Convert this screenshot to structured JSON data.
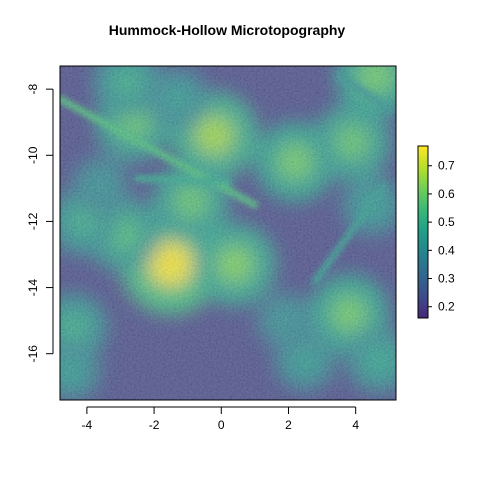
{
  "chart_data": {
    "type": "heatmap",
    "title": "Hummock-Hollow Microtopography",
    "xlabel": "",
    "ylabel": "",
    "xlim": [
      -4.8,
      5.2
    ],
    "ylim": [
      -17.4,
      -7.3
    ],
    "x_ticks": [
      -4,
      -2,
      0,
      2,
      4
    ],
    "x_tick_labels": [
      "-4",
      "-2",
      "0",
      "2",
      "4"
    ],
    "y_ticks": [
      -8,
      -10,
      -12,
      -14,
      -16
    ],
    "y_tick_labels": [
      "-8",
      "-10",
      "-12",
      "-14",
      "-16"
    ],
    "colorbar": {
      "range": [
        0.16,
        0.77
      ],
      "ticks": [
        0.2,
        0.3,
        0.4,
        0.5,
        0.6,
        0.7
      ],
      "tick_labels": [
        "0.2",
        "0.3",
        "0.4",
        "0.5",
        "0.6",
        "0.7"
      ],
      "palette": [
        "#482878",
        "#3e4a89",
        "#31688e",
        "#26828e",
        "#1f9e89",
        "#35b779",
        "#6ece58",
        "#b5de2b",
        "#fde725"
      ],
      "placement": "right"
    },
    "hummocks": [
      {
        "x": -1.5,
        "y": -13.3,
        "value": 0.76
      },
      {
        "x": 0.4,
        "y": -13.3,
        "value": 0.62
      },
      {
        "x": -0.2,
        "y": -9.4,
        "value": 0.66
      },
      {
        "x": -2.6,
        "y": -9.0,
        "value": 0.58
      },
      {
        "x": -0.9,
        "y": -11.4,
        "value": 0.58
      },
      {
        "x": 2.2,
        "y": -10.2,
        "value": 0.6
      },
      {
        "x": 3.9,
        "y": -9.6,
        "value": 0.58
      },
      {
        "x": 4.6,
        "y": -7.6,
        "value": 0.6
      },
      {
        "x": 3.8,
        "y": -14.8,
        "value": 0.6
      },
      {
        "x": -2.9,
        "y": -12.4,
        "value": 0.55
      },
      {
        "x": -4.1,
        "y": -12.0,
        "value": 0.5
      },
      {
        "x": -4.4,
        "y": -15.2,
        "value": 0.5
      },
      {
        "x": -4.5,
        "y": -16.5,
        "value": 0.45
      },
      {
        "x": 2.5,
        "y": -16.2,
        "value": 0.45
      },
      {
        "x": 4.7,
        "y": -16.2,
        "value": 0.48
      },
      {
        "x": -2.8,
        "y": -7.8,
        "value": 0.5
      },
      {
        "x": 4.5,
        "y": -11.5,
        "value": 0.45
      },
      {
        "x": -1.3,
        "y": -8.3,
        "value": 0.45
      },
      {
        "x": 1.9,
        "y": -15.0,
        "value": 0.42
      },
      {
        "x": -3.6,
        "y": -10.9,
        "value": 0.42
      }
    ],
    "ridges": [
      {
        "from": [
          -4.8,
          -8.3
        ],
        "to": [
          1.0,
          -11.5
        ],
        "value": 0.55
      },
      {
        "from": [
          -2.5,
          -10.7
        ],
        "to": [
          0.2,
          -10.8
        ],
        "value": 0.48
      },
      {
        "from": [
          2.8,
          -13.8
        ],
        "to": [
          4.8,
          -11.0
        ],
        "value": 0.44
      },
      {
        "from": [
          3.5,
          -7.6
        ],
        "to": [
          5.0,
          -8.6
        ],
        "value": 0.42
      }
    ],
    "base_value": 0.22
  }
}
